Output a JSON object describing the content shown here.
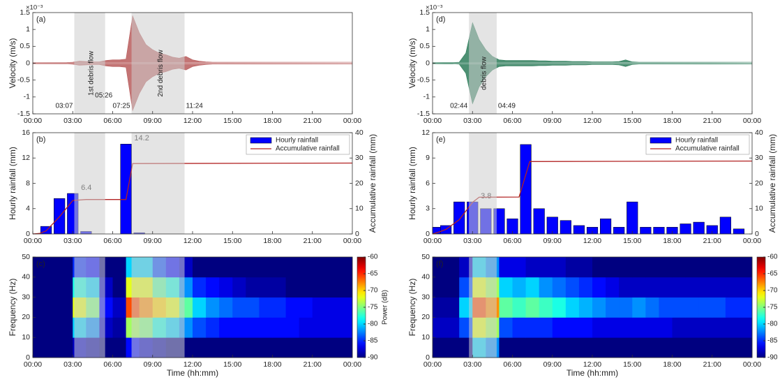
{
  "chart_data": [
    {
      "type": "waveform",
      "panel_label": "(a)",
      "ylabel": "Velocity (m/s)",
      "y_exponent_label": "×10⁻³",
      "x": [
        0,
        0.5,
        1,
        1.5,
        2,
        2.5,
        3,
        3.5,
        4,
        4.5,
        5,
        5.5,
        6,
        6.5,
        7,
        7.5,
        8,
        8.5,
        9,
        9.5,
        10,
        10.5,
        11,
        11.5,
        12,
        12.5,
        13,
        13.5,
        14,
        14.5,
        15,
        15.5,
        16,
        16.5,
        17,
        17.5,
        18,
        18.5,
        19,
        19.5,
        20,
        20.5,
        21,
        21.5,
        22,
        22.5,
        23,
        23.5,
        24
      ],
      "values": [
        0.02,
        0.02,
        0.02,
        0.02,
        0.02,
        0.02,
        0.03,
        0.06,
        0.05,
        0.04,
        0.04,
        0.08,
        0.1,
        0.1,
        0.12,
        1.4,
        0.9,
        0.55,
        0.4,
        0.3,
        0.25,
        0.18,
        0.15,
        0.2,
        0.1,
        0.06,
        0.04,
        0.03,
        0.03,
        0.03,
        0.03,
        0.03,
        0.03,
        0.03,
        0.03,
        0.03,
        0.03,
        0.03,
        0.03,
        0.03,
        0.03,
        0.03,
        0.03,
        0.03,
        0.03,
        0.03,
        0.03,
        0.03,
        0.03
      ],
      "color": "#b85c5c",
      "xlim": [
        0,
        24
      ],
      "xticks": [
        {
          "value": 0,
          "label": "00:00"
        },
        {
          "value": 3,
          "label": "03:00"
        },
        {
          "value": 6,
          "label": "06:00"
        },
        {
          "value": 9,
          "label": "09:00"
        },
        {
          "value": 12,
          "label": "12:00"
        },
        {
          "value": 15,
          "label": "15:00"
        },
        {
          "value": 18,
          "label": "18:00"
        },
        {
          "value": 21,
          "label": "21:00"
        },
        {
          "value": 24,
          "label": "00:00"
        }
      ],
      "ylim": [
        -1.5,
        1.5
      ],
      "yticks": [
        -1.5,
        -1,
        -0.5,
        0,
        0.5,
        1,
        1.5
      ],
      "shaded_regions": [
        {
          "start": 3.117,
          "end": 5.433,
          "label": "1st debris flow",
          "start_label": "03:07",
          "end_label": "05:26"
        },
        {
          "start": 7.417,
          "end": 11.4,
          "label": "2nd debris flow",
          "start_label": "07:25",
          "end_label": "11:24"
        }
      ]
    },
    {
      "type": "bar_line",
      "panel_label": "(b)",
      "ylabel": "Hourly rainfall (mm)",
      "y2label": "Accumulative rainfall (mm)",
      "series": [
        {
          "name": "Hourly rainfall",
          "color": "#0000ff",
          "x": [
            1,
            2,
            3,
            4,
            7,
            8
          ],
          "values": [
            1.2,
            5.6,
            6.4,
            0.4,
            14.2,
            0.2
          ],
          "value_labels": [
            null,
            null,
            "6.4",
            null,
            "14.2",
            null
          ]
        },
        {
          "name": "Accumulative rainfall",
          "color": "#b22222",
          "axis": "y2",
          "x": [
            0,
            0.5,
            1,
            2,
            3,
            4,
            7,
            7.5,
            24
          ],
          "values": [
            0,
            0.2,
            1.2,
            6.8,
            13.2,
            13.6,
            13.6,
            27.8,
            28
          ]
        }
      ],
      "xlim": [
        0,
        24
      ],
      "xticks": [
        {
          "value": 0,
          "label": "00:00"
        },
        {
          "value": 3,
          "label": "03:00"
        },
        {
          "value": 6,
          "label": "06:00"
        },
        {
          "value": 9,
          "label": "09:00"
        },
        {
          "value": 12,
          "label": "12:00"
        },
        {
          "value": 15,
          "label": "15:00"
        },
        {
          "value": 18,
          "label": "18:00"
        },
        {
          "value": 21,
          "label": "21:00"
        },
        {
          "value": 24,
          "label": "00:00"
        }
      ],
      "ylim": [
        0,
        16
      ],
      "yticks": [
        0,
        4,
        8,
        12,
        16
      ],
      "y2lim": [
        0,
        40
      ],
      "y2ticks": [
        0,
        10,
        20,
        30,
        40
      ],
      "legend": "upper right"
    },
    {
      "type": "heatmap",
      "panel_label": "(c)",
      "xlabel": "Time (hh:mm)",
      "ylabel": "Frequency (Hz)",
      "x_bins": [
        0,
        1,
        2,
        3,
        4,
        5,
        6,
        7,
        8,
        9,
        10,
        11,
        12,
        13,
        14,
        15,
        16,
        17,
        18,
        19,
        20,
        21,
        22,
        23,
        24
      ],
      "y_bins": [
        0,
        10,
        20,
        30,
        40,
        50
      ],
      "values": [
        [
          -90,
          -90,
          -90,
          -88,
          -89,
          -90,
          -90,
          -86,
          -88,
          -89,
          -90,
          -90,
          -90,
          -90,
          -90,
          -90,
          -90,
          -90,
          -90,
          -90,
          -90,
          -90,
          -90,
          -90
        ],
        [
          -90,
          -90,
          -90,
          -80,
          -82,
          -88,
          -89,
          -74,
          -75,
          -78,
          -80,
          -82,
          -84,
          -85,
          -86,
          -86,
          -86,
          -86,
          -86,
          -86,
          -87,
          -87,
          -87,
          -87
        ],
        [
          -90,
          -90,
          -90,
          -72,
          -75,
          -86,
          -88,
          -66,
          -68,
          -70,
          -72,
          -76,
          -80,
          -82,
          -83,
          -84,
          -84,
          -85,
          -85,
          -86,
          -86,
          -87,
          -87,
          -87
        ],
        [
          -90,
          -90,
          -90,
          -78,
          -80,
          -88,
          -90,
          -72,
          -72,
          -76,
          -78,
          -82,
          -85,
          -86,
          -87,
          -88,
          -89,
          -89,
          -89,
          -90,
          -90,
          -90,
          -90,
          -90
        ],
        [
          -90,
          -90,
          -90,
          -85,
          -86,
          -90,
          -90,
          -80,
          -80,
          -84,
          -86,
          -88,
          -90,
          -90,
          -90,
          -90,
          -90,
          -90,
          -90,
          -90,
          -90,
          -90,
          -90,
          -90
        ]
      ],
      "zlim": [
        -90,
        -60
      ],
      "zticks": [
        -90,
        -85,
        -80,
        -75,
        -70,
        -65,
        -60
      ],
      "colorbar_label": "Power (dB)",
      "colormap": "jet",
      "xlim": [
        0,
        24
      ],
      "xticks": [
        {
          "value": 0,
          "label": "00:00"
        },
        {
          "value": 3,
          "label": "03:00"
        },
        {
          "value": 6,
          "label": "06:00"
        },
        {
          "value": 9,
          "label": "09:00"
        },
        {
          "value": 12,
          "label": "12:00"
        },
        {
          "value": 15,
          "label": "15:00"
        },
        {
          "value": 18,
          "label": "18:00"
        },
        {
          "value": 21,
          "label": "21:00"
        },
        {
          "value": 24,
          "label": "00:00"
        }
      ],
      "ylim": [
        0,
        50
      ],
      "yticks": [
        0,
        10,
        20,
        30,
        40,
        50
      ]
    },
    {
      "type": "waveform",
      "panel_label": "(d)",
      "ylabel": "Velocity (m/s)",
      "y_exponent_label": "×10⁻³",
      "x": [
        0,
        0.5,
        1,
        1.5,
        2,
        2.5,
        3,
        3.5,
        4,
        4.5,
        5,
        5.5,
        6,
        6.5,
        7,
        7.5,
        8,
        8.5,
        9,
        9.5,
        10,
        10.5,
        11,
        11.5,
        12,
        12.5,
        13,
        13.5,
        14,
        14.5,
        15,
        15.5,
        16,
        16.5,
        17,
        17.5,
        18,
        18.5,
        19,
        19.5,
        20,
        20.5,
        21,
        21.5,
        22,
        22.5,
        23,
        23.5,
        24
      ],
      "values": [
        0.02,
        0.02,
        0.02,
        0.02,
        0.03,
        0.3,
        1.2,
        0.7,
        0.4,
        0.2,
        0.1,
        0.08,
        0.08,
        0.08,
        0.08,
        0.08,
        0.07,
        0.07,
        0.06,
        0.06,
        0.06,
        0.05,
        0.05,
        0.05,
        0.04,
        0.04,
        0.04,
        0.04,
        0.05,
        0.1,
        0.04,
        0.03,
        0.03,
        0.03,
        0.03,
        0.03,
        0.03,
        0.03,
        0.03,
        0.03,
        0.03,
        0.03,
        0.03,
        0.03,
        0.03,
        0.03,
        0.03,
        0.03,
        0.03
      ],
      "color": "#2e7d5b",
      "xlim": [
        0,
        24
      ],
      "xticks": [
        {
          "value": 0,
          "label": "00:00"
        },
        {
          "value": 3,
          "label": "03:00"
        },
        {
          "value": 6,
          "label": "06:00"
        },
        {
          "value": 9,
          "label": "09:00"
        },
        {
          "value": 12,
          "label": "12:00"
        },
        {
          "value": 15,
          "label": "15:00"
        },
        {
          "value": 18,
          "label": "18:00"
        },
        {
          "value": 21,
          "label": "21:00"
        },
        {
          "value": 24,
          "label": "00:00"
        }
      ],
      "ylim": [
        -1.5,
        1.5
      ],
      "yticks": [
        -1.5,
        -1,
        -0.5,
        0,
        0.5,
        1,
        1.5
      ],
      "shaded_regions": [
        {
          "start": 2.733,
          "end": 4.817,
          "label": "debris flow",
          "start_label": "02:44",
          "end_label": "04:49"
        }
      ]
    },
    {
      "type": "bar_line",
      "panel_label": "(e)",
      "ylabel": "Hourly rainfall (mm)",
      "y2label": "Accumulative rainfall (mm)",
      "series": [
        {
          "name": "Hourly rainfall",
          "color": "#0000ff",
          "x": [
            0.4,
            1,
            2,
            3,
            4,
            5,
            6,
            7,
            8,
            9,
            10,
            11,
            12,
            13,
            14,
            15,
            16,
            17,
            18,
            19,
            20,
            21,
            22,
            23
          ],
          "values": [
            0.8,
            1.0,
            3.8,
            3.8,
            3.0,
            3.0,
            1.8,
            10.6,
            3.0,
            2.0,
            1.6,
            1.0,
            0.8,
            1.8,
            0.8,
            3.8,
            0.8,
            0.8,
            0.8,
            1.2,
            1.4,
            1.0,
            2.0,
            0.6
          ],
          "value_labels": [
            null,
            null,
            null,
            "3.8",
            null,
            null,
            null,
            null,
            null,
            null,
            null,
            null,
            null,
            null,
            null,
            null,
            null,
            null,
            null,
            null,
            null,
            null,
            null,
            null
          ]
        },
        {
          "name": "Accumulative rainfall",
          "color": "#b22222",
          "axis": "y2",
          "x": [
            0,
            0.5,
            1,
            2,
            3,
            3.5,
            6.5,
            7.3,
            24
          ],
          "values": [
            0,
            0.8,
            1.8,
            5.6,
            12.5,
            14.5,
            14.6,
            28.6,
            28.8
          ]
        }
      ],
      "xlim": [
        0,
        24
      ],
      "xticks": [
        {
          "value": 0,
          "label": "00:00"
        },
        {
          "value": 3,
          "label": "03:00"
        },
        {
          "value": 6,
          "label": "06:00"
        },
        {
          "value": 9,
          "label": "09:00"
        },
        {
          "value": 12,
          "label": "12:00"
        },
        {
          "value": 15,
          "label": "15:00"
        },
        {
          "value": 18,
          "label": "18:00"
        },
        {
          "value": 21,
          "label": "21:00"
        },
        {
          "value": 24,
          "label": "00:00"
        }
      ],
      "ylim": [
        0,
        12
      ],
      "yticks": [
        0,
        3,
        6,
        9,
        12
      ],
      "y2lim": [
        0,
        40
      ],
      "y2ticks": [
        0,
        10,
        20,
        30,
        40
      ],
      "legend": "upper right"
    },
    {
      "type": "heatmap",
      "panel_label": "(f)",
      "xlabel": "Time (hh:mm)",
      "ylabel": "Frequency (Hz)",
      "x_bins": [
        0,
        1,
        2,
        3,
        4,
        5,
        6,
        7,
        8,
        9,
        10,
        11,
        12,
        13,
        14,
        15,
        16,
        17,
        18,
        19,
        20,
        21,
        22,
        23,
        24
      ],
      "y_bins": [
        0,
        10,
        20,
        30,
        40,
        50
      ],
      "values": [
        [
          -90,
          -90,
          -90,
          -80,
          -82,
          -90,
          -90,
          -90,
          -90,
          -90,
          -90,
          -90,
          -90,
          -90,
          -90,
          -90,
          -90,
          -90,
          -90,
          -90,
          -90,
          -90,
          -90,
          -90
        ],
        [
          -88,
          -88,
          -84,
          -72,
          -74,
          -84,
          -85,
          -85,
          -85,
          -86,
          -86,
          -86,
          -87,
          -87,
          -87,
          -87,
          -87,
          -87,
          -88,
          -88,
          -88,
          -88,
          -88,
          -88
        ],
        [
          -89,
          -89,
          -80,
          -66,
          -68,
          -76,
          -77,
          -76,
          -77,
          -78,
          -80,
          -81,
          -82,
          -83,
          -83,
          -82,
          -83,
          -84,
          -84,
          -84,
          -84,
          -84,
          -85,
          -85
        ],
        [
          -90,
          -90,
          -84,
          -72,
          -74,
          -80,
          -81,
          -80,
          -82,
          -83,
          -84,
          -85,
          -86,
          -87,
          -88,
          -88,
          -88,
          -88,
          -88,
          -88,
          -88,
          -88,
          -88,
          -88
        ],
        [
          -90,
          -90,
          -88,
          -80,
          -82,
          -87,
          -87,
          -88,
          -88,
          -88,
          -89,
          -89,
          -90,
          -90,
          -90,
          -90,
          -90,
          -90,
          -90,
          -90,
          -90,
          -90,
          -90,
          -90
        ]
      ],
      "zlim": [
        -90,
        -60
      ],
      "zticks": [
        -90,
        -85,
        -80,
        -75,
        -70,
        -65,
        -60
      ],
      "colorbar_label": "Power (dB)",
      "colormap": "jet",
      "xlim": [
        0,
        24
      ],
      "xticks": [
        {
          "value": 0,
          "label": "00:00"
        },
        {
          "value": 3,
          "label": "03:00"
        },
        {
          "value": 6,
          "label": "06:00"
        },
        {
          "value": 9,
          "label": "09:00"
        },
        {
          "value": 12,
          "label": "12:00"
        },
        {
          "value": 15,
          "label": "15:00"
        },
        {
          "value": 18,
          "label": "18:00"
        },
        {
          "value": 21,
          "label": "21:00"
        },
        {
          "value": 24,
          "label": "00:00"
        }
      ],
      "ylim": [
        0,
        50
      ],
      "yticks": [
        0,
        10,
        20,
        30,
        40,
        50
      ]
    }
  ]
}
